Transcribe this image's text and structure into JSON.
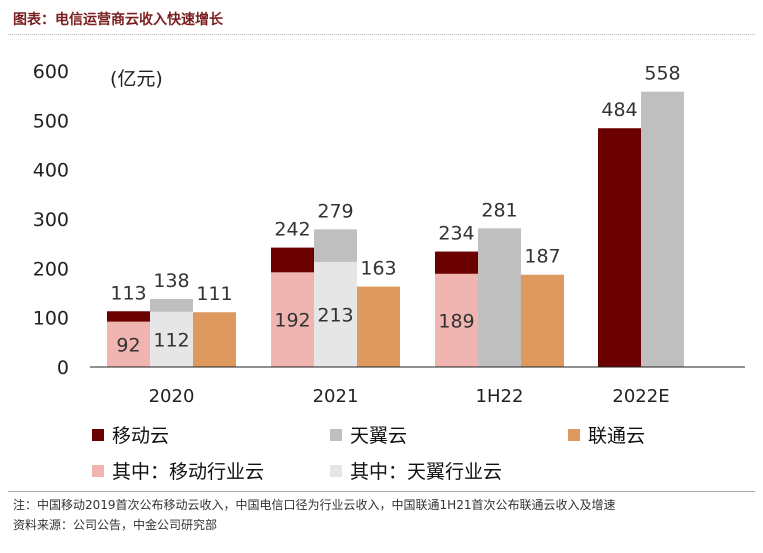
{
  "figure": {
    "title": "图表：电信运营商云收入快速增长",
    "note": "注：中国移动2019首次公布移动云收入，中国电信口径为行业云收入，中国联通1H21首次公布联通云收入及增速",
    "source": "资料来源：公司公告，中金公司研究部"
  },
  "colors": {
    "mobile": "#6b0000",
    "tianyi": "#bfbfbf",
    "unicom": "#de9a5e",
    "mobile_industry": "#f0b5b0",
    "tianyi_industry": "#e6e6e6"
  },
  "chart_data": {
    "type": "bar",
    "unit_label": "(亿元)",
    "categories": [
      "2020",
      "2021",
      "1H22",
      "2022E"
    ],
    "ylim": [
      0,
      600
    ],
    "yticks": [
      0,
      100,
      200,
      300,
      400,
      500,
      600
    ],
    "grid": false,
    "legend_position": "bottom",
    "series": [
      {
        "name": "移动云",
        "color_key": "mobile",
        "values": [
          113,
          242,
          234,
          484
        ]
      },
      {
        "name": "天翼云",
        "color_key": "tianyi",
        "values": [
          138,
          279,
          281,
          558
        ]
      },
      {
        "name": "联通云",
        "color_key": "unicom",
        "values": [
          111,
          163,
          187,
          null
        ]
      }
    ],
    "sub_series": [
      {
        "name": "其中：移动行业云",
        "parent": "移动云",
        "color_key": "mobile_industry",
        "values": [
          92,
          192,
          189,
          null
        ]
      },
      {
        "name": "其中：天翼行业云",
        "parent": "天翼云",
        "color_key": "tianyi_industry",
        "values": [
          112,
          213,
          null,
          null
        ]
      }
    ]
  }
}
